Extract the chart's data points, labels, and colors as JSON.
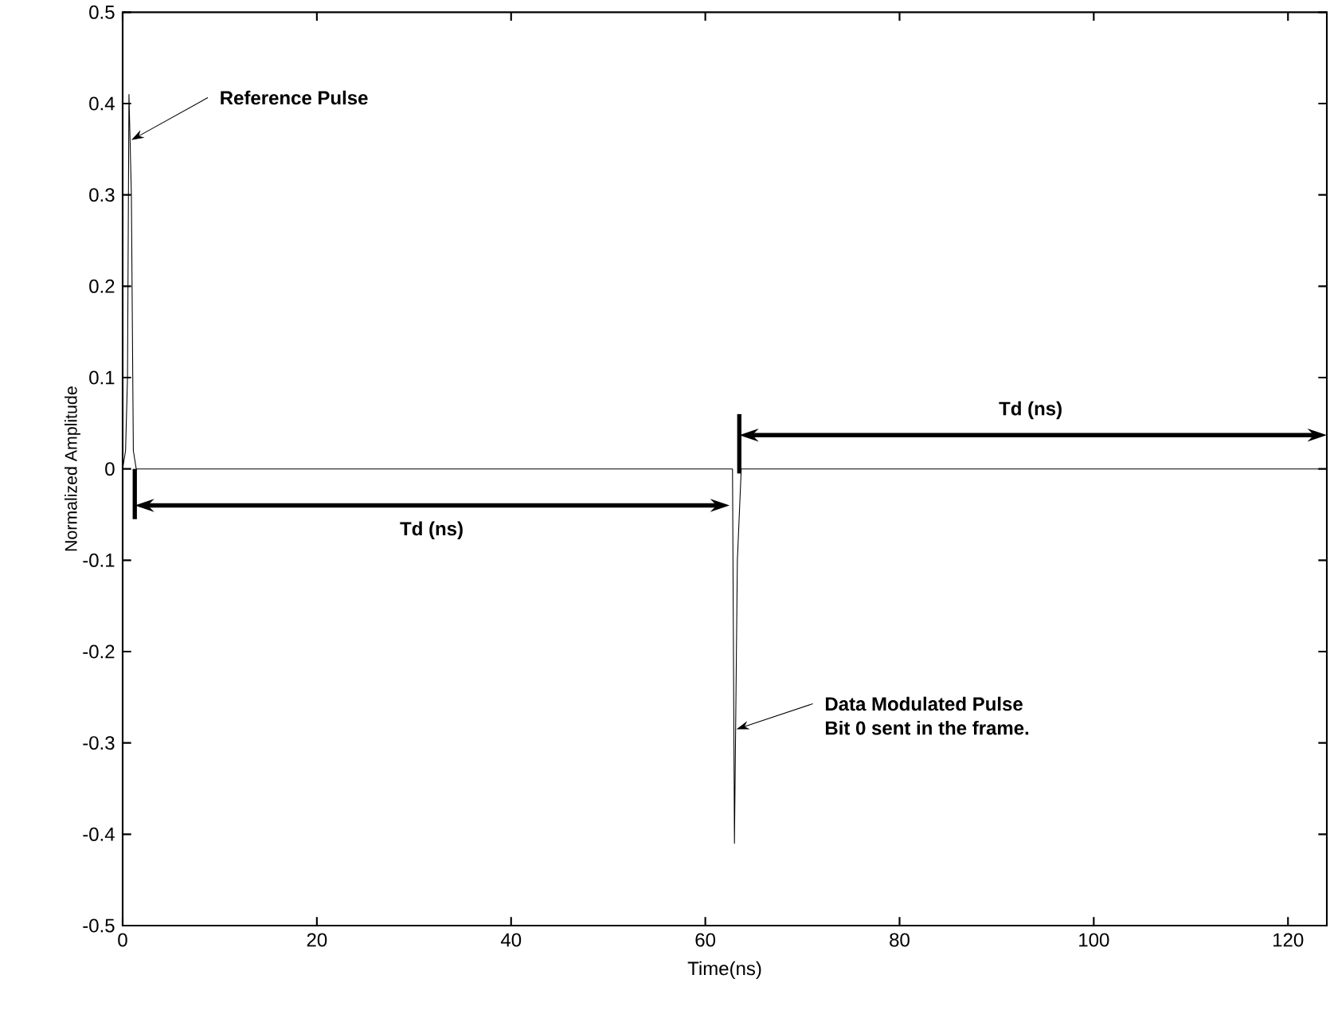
{
  "chart_data": {
    "type": "line",
    "xlabel": "Time(ns)",
    "ylabel": "Normalized Amplitude",
    "x": [
      0,
      0.3,
      0.5,
      0.65,
      0.9,
      1.1,
      1.4,
      62.6,
      62.8,
      63.0,
      63.3,
      63.7,
      124
    ],
    "series": [
      {
        "color": "#000000",
        "values": [
          0,
          0.02,
          0.1,
          0.41,
          0.3,
          0.02,
          0,
          0,
          0,
          -0.41,
          -0.1,
          0,
          0
        ]
      }
    ],
    "xlim": [
      0,
      124
    ],
    "ylim": [
      -0.5,
      0.5
    ],
    "xticks": [
      0,
      20,
      40,
      60,
      80,
      100,
      120
    ],
    "yticks": [
      -0.5,
      -0.4,
      -0.3,
      -0.2,
      -0.1,
      0,
      0.1,
      0.2,
      0.3,
      0.4,
      0.5
    ],
    "grid": false,
    "marker": "none",
    "line_style": "solid",
    "annotations": [
      {
        "text": "Reference Pulse",
        "x": 0.9,
        "y": 0.36
      },
      {
        "text": "Data Modulated Pulse",
        "x": 63.2,
        "y": -0.285
      },
      "Bit 0 sent in the frame.",
      "Td (ns)",
      "Td (ns)"
    ]
  }
}
